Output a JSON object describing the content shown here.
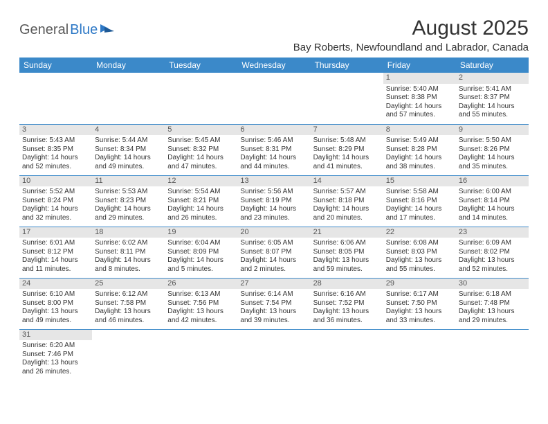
{
  "logo": {
    "part1": "General",
    "part2": "Blue"
  },
  "title": "August 2025",
  "location": "Bay Roberts, Newfoundland and Labrador, Canada",
  "colors": {
    "header_bg": "#3b89c9",
    "header_text": "#ffffff",
    "daynum_bg": "#e6e6e6",
    "rule": "#3b89c9",
    "logo_blue": "#2d78c6",
    "logo_gray": "#5a5a5a",
    "body_text": "#333333"
  },
  "weekdays": [
    "Sunday",
    "Monday",
    "Tuesday",
    "Wednesday",
    "Thursday",
    "Friday",
    "Saturday"
  ],
  "weeks": [
    [
      {
        "day": "",
        "lines": []
      },
      {
        "day": "",
        "lines": []
      },
      {
        "day": "",
        "lines": []
      },
      {
        "day": "",
        "lines": []
      },
      {
        "day": "",
        "lines": []
      },
      {
        "day": "1",
        "lines": [
          "Sunrise: 5:40 AM",
          "Sunset: 8:38 PM",
          "Daylight: 14 hours",
          "and 57 minutes."
        ]
      },
      {
        "day": "2",
        "lines": [
          "Sunrise: 5:41 AM",
          "Sunset: 8:37 PM",
          "Daylight: 14 hours",
          "and 55 minutes."
        ]
      }
    ],
    [
      {
        "day": "3",
        "lines": [
          "Sunrise: 5:43 AM",
          "Sunset: 8:35 PM",
          "Daylight: 14 hours",
          "and 52 minutes."
        ]
      },
      {
        "day": "4",
        "lines": [
          "Sunrise: 5:44 AM",
          "Sunset: 8:34 PM",
          "Daylight: 14 hours",
          "and 49 minutes."
        ]
      },
      {
        "day": "5",
        "lines": [
          "Sunrise: 5:45 AM",
          "Sunset: 8:32 PM",
          "Daylight: 14 hours",
          "and 47 minutes."
        ]
      },
      {
        "day": "6",
        "lines": [
          "Sunrise: 5:46 AM",
          "Sunset: 8:31 PM",
          "Daylight: 14 hours",
          "and 44 minutes."
        ]
      },
      {
        "day": "7",
        "lines": [
          "Sunrise: 5:48 AM",
          "Sunset: 8:29 PM",
          "Daylight: 14 hours",
          "and 41 minutes."
        ]
      },
      {
        "day": "8",
        "lines": [
          "Sunrise: 5:49 AM",
          "Sunset: 8:28 PM",
          "Daylight: 14 hours",
          "and 38 minutes."
        ]
      },
      {
        "day": "9",
        "lines": [
          "Sunrise: 5:50 AM",
          "Sunset: 8:26 PM",
          "Daylight: 14 hours",
          "and 35 minutes."
        ]
      }
    ],
    [
      {
        "day": "10",
        "lines": [
          "Sunrise: 5:52 AM",
          "Sunset: 8:24 PM",
          "Daylight: 14 hours",
          "and 32 minutes."
        ]
      },
      {
        "day": "11",
        "lines": [
          "Sunrise: 5:53 AM",
          "Sunset: 8:23 PM",
          "Daylight: 14 hours",
          "and 29 minutes."
        ]
      },
      {
        "day": "12",
        "lines": [
          "Sunrise: 5:54 AM",
          "Sunset: 8:21 PM",
          "Daylight: 14 hours",
          "and 26 minutes."
        ]
      },
      {
        "day": "13",
        "lines": [
          "Sunrise: 5:56 AM",
          "Sunset: 8:19 PM",
          "Daylight: 14 hours",
          "and 23 minutes."
        ]
      },
      {
        "day": "14",
        "lines": [
          "Sunrise: 5:57 AM",
          "Sunset: 8:18 PM",
          "Daylight: 14 hours",
          "and 20 minutes."
        ]
      },
      {
        "day": "15",
        "lines": [
          "Sunrise: 5:58 AM",
          "Sunset: 8:16 PM",
          "Daylight: 14 hours",
          "and 17 minutes."
        ]
      },
      {
        "day": "16",
        "lines": [
          "Sunrise: 6:00 AM",
          "Sunset: 8:14 PM",
          "Daylight: 14 hours",
          "and 14 minutes."
        ]
      }
    ],
    [
      {
        "day": "17",
        "lines": [
          "Sunrise: 6:01 AM",
          "Sunset: 8:12 PM",
          "Daylight: 14 hours",
          "and 11 minutes."
        ]
      },
      {
        "day": "18",
        "lines": [
          "Sunrise: 6:02 AM",
          "Sunset: 8:11 PM",
          "Daylight: 14 hours",
          "and 8 minutes."
        ]
      },
      {
        "day": "19",
        "lines": [
          "Sunrise: 6:04 AM",
          "Sunset: 8:09 PM",
          "Daylight: 14 hours",
          "and 5 minutes."
        ]
      },
      {
        "day": "20",
        "lines": [
          "Sunrise: 6:05 AM",
          "Sunset: 8:07 PM",
          "Daylight: 14 hours",
          "and 2 minutes."
        ]
      },
      {
        "day": "21",
        "lines": [
          "Sunrise: 6:06 AM",
          "Sunset: 8:05 PM",
          "Daylight: 13 hours",
          "and 59 minutes."
        ]
      },
      {
        "day": "22",
        "lines": [
          "Sunrise: 6:08 AM",
          "Sunset: 8:03 PM",
          "Daylight: 13 hours",
          "and 55 minutes."
        ]
      },
      {
        "day": "23",
        "lines": [
          "Sunrise: 6:09 AM",
          "Sunset: 8:02 PM",
          "Daylight: 13 hours",
          "and 52 minutes."
        ]
      }
    ],
    [
      {
        "day": "24",
        "lines": [
          "Sunrise: 6:10 AM",
          "Sunset: 8:00 PM",
          "Daylight: 13 hours",
          "and 49 minutes."
        ]
      },
      {
        "day": "25",
        "lines": [
          "Sunrise: 6:12 AM",
          "Sunset: 7:58 PM",
          "Daylight: 13 hours",
          "and 46 minutes."
        ]
      },
      {
        "day": "26",
        "lines": [
          "Sunrise: 6:13 AM",
          "Sunset: 7:56 PM",
          "Daylight: 13 hours",
          "and 42 minutes."
        ]
      },
      {
        "day": "27",
        "lines": [
          "Sunrise: 6:14 AM",
          "Sunset: 7:54 PM",
          "Daylight: 13 hours",
          "and 39 minutes."
        ]
      },
      {
        "day": "28",
        "lines": [
          "Sunrise: 6:16 AM",
          "Sunset: 7:52 PM",
          "Daylight: 13 hours",
          "and 36 minutes."
        ]
      },
      {
        "day": "29",
        "lines": [
          "Sunrise: 6:17 AM",
          "Sunset: 7:50 PM",
          "Daylight: 13 hours",
          "and 33 minutes."
        ]
      },
      {
        "day": "30",
        "lines": [
          "Sunrise: 6:18 AM",
          "Sunset: 7:48 PM",
          "Daylight: 13 hours",
          "and 29 minutes."
        ]
      }
    ],
    [
      {
        "day": "31",
        "lines": [
          "Sunrise: 6:20 AM",
          "Sunset: 7:46 PM",
          "Daylight: 13 hours",
          "and 26 minutes."
        ]
      },
      {
        "day": "",
        "lines": []
      },
      {
        "day": "",
        "lines": []
      },
      {
        "day": "",
        "lines": []
      },
      {
        "day": "",
        "lines": []
      },
      {
        "day": "",
        "lines": []
      },
      {
        "day": "",
        "lines": []
      }
    ]
  ]
}
